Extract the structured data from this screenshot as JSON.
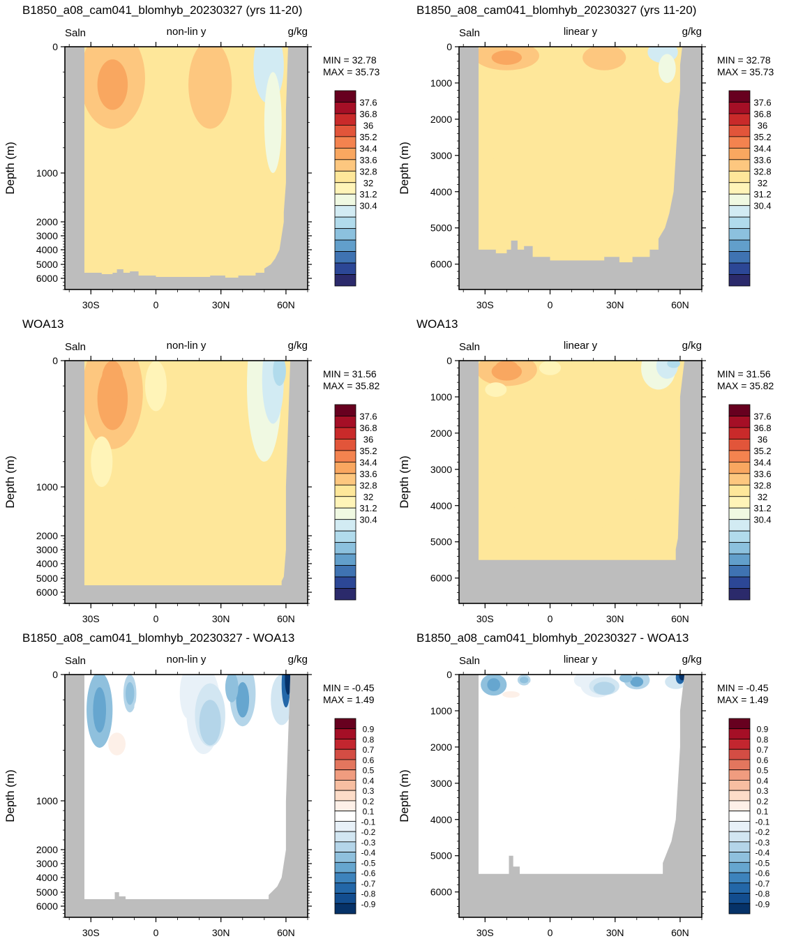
{
  "chart_data": [
    {
      "type": "heatmap",
      "title": "B1850_a08_cam041_blomhyb_20230327 (yrs 11-20)",
      "left_label": "Saln",
      "center_label": "non-lin y",
      "right_label": "g/kg",
      "ylabel": "Depth (m)",
      "yscale": "non-linear",
      "yticks": [
        "0",
        "1000",
        "2000",
        "3000",
        "4000",
        "5000",
        "6000"
      ],
      "xticks": [
        "30S",
        "0",
        "30N",
        "60N"
      ],
      "min_text": "MIN =  32.78",
      "max_text": "MAX =  35.73",
      "colorbar": [
        "37.6",
        "36.8",
        "36",
        "35.2",
        "34.4",
        "33.6",
        "32.8",
        "32",
        "31.2",
        "30.4"
      ],
      "palette": "saln"
    },
    {
      "type": "heatmap",
      "title": "B1850_a08_cam041_blomhyb_20230327 (yrs 11-20)",
      "left_label": "Saln",
      "center_label": "linear y",
      "right_label": "g/kg",
      "ylabel": "Depth (m)",
      "yscale": "linear",
      "yticks": [
        "0",
        "1000",
        "2000",
        "3000",
        "4000",
        "5000",
        "6000"
      ],
      "xticks": [
        "30S",
        "0",
        "30N",
        "60N"
      ],
      "min_text": "MIN =  32.78",
      "max_text": "MAX =  35.73",
      "colorbar": [
        "37.6",
        "36.8",
        "36",
        "35.2",
        "34.4",
        "33.6",
        "32.8",
        "32",
        "31.2",
        "30.4"
      ],
      "palette": "saln"
    },
    {
      "type": "heatmap",
      "title": "WOA13",
      "left_label": "Saln",
      "center_label": "non-lin y",
      "right_label": "g/kg",
      "ylabel": "Depth (m)",
      "yscale": "non-linear",
      "yticks": [
        "0",
        "1000",
        "2000",
        "3000",
        "4000",
        "5000",
        "6000"
      ],
      "xticks": [
        "30S",
        "0",
        "30N",
        "60N"
      ],
      "min_text": "MIN =  31.56",
      "max_text": "MAX =  35.82",
      "colorbar": [
        "37.6",
        "36.8",
        "36",
        "35.2",
        "34.4",
        "33.6",
        "32.8",
        "32",
        "31.2",
        "30.4"
      ],
      "palette": "saln"
    },
    {
      "type": "heatmap",
      "title": "WOA13",
      "left_label": "Saln",
      "center_label": "linear y",
      "right_label": "g/kg",
      "ylabel": "Depth (m)",
      "yscale": "linear",
      "yticks": [
        "0",
        "1000",
        "2000",
        "3000",
        "4000",
        "5000",
        "6000"
      ],
      "xticks": [
        "30S",
        "0",
        "30N",
        "60N"
      ],
      "min_text": "MIN =  31.56",
      "max_text": "MAX =  35.82",
      "colorbar": [
        "37.6",
        "36.8",
        "36",
        "35.2",
        "34.4",
        "33.6",
        "32.8",
        "32",
        "31.2",
        "30.4"
      ],
      "palette": "saln"
    },
    {
      "type": "heatmap",
      "title": "B1850_a08_cam041_blomhyb_20230327 - WOA13",
      "left_label": "Saln",
      "center_label": "non-lin y",
      "right_label": "g/kg",
      "ylabel": "Depth (m)",
      "yscale": "non-linear",
      "yticks": [
        "0",
        "1000",
        "2000",
        "3000",
        "4000",
        "5000",
        "6000"
      ],
      "xticks": [
        "30S",
        "0",
        "30N",
        "60N"
      ],
      "min_text": "MIN =  -0.45",
      "max_text": "MAX =   1.49",
      "colorbar": [
        "0.9",
        "0.8",
        "0.7",
        "0.6",
        "0.5",
        "0.4",
        "0.3",
        "0.2",
        "0.1",
        "-0.1",
        "-0.2",
        "-0.3",
        "-0.4",
        "-0.5",
        "-0.6",
        "-0.7",
        "-0.8",
        "-0.9"
      ],
      "palette": "diff"
    },
    {
      "type": "heatmap",
      "title": "B1850_a08_cam041_blomhyb_20230327 - WOA13",
      "left_label": "Saln",
      "center_label": "linear y",
      "right_label": "g/kg",
      "ylabel": "Depth (m)",
      "yscale": "linear",
      "yticks": [
        "0",
        "1000",
        "2000",
        "3000",
        "4000",
        "5000",
        "6000"
      ],
      "xticks": [
        "30S",
        "0",
        "30N",
        "60N"
      ],
      "min_text": "MIN =  -0.45",
      "max_text": "MAX =   1.49",
      "colorbar": [
        "0.9",
        "0.8",
        "0.7",
        "0.6",
        "0.5",
        "0.4",
        "0.3",
        "0.2",
        "0.1",
        "-0.1",
        "-0.2",
        "-0.3",
        "-0.4",
        "-0.5",
        "-0.6",
        "-0.7",
        "-0.8",
        "-0.9"
      ],
      "palette": "diff"
    }
  ],
  "colors": {
    "land": "#bdbdbd",
    "saln_palette": [
      "#67001f",
      "#a50f26",
      "#c92a2a",
      "#e2553a",
      "#f4834f",
      "#f9a760",
      "#fdc77f",
      "#fee79a",
      "#fff4b8",
      "#f0f9e2",
      "#d2ebf3",
      "#b1dbec",
      "#8cc1de",
      "#629fcb",
      "#3f73b2",
      "#2c4796",
      "#2b2a6b"
    ],
    "diff_palette": [
      "#67001f",
      "#a50f26",
      "#c3262f",
      "#d44d44",
      "#e3765e",
      "#f09c7f",
      "#f7bea1",
      "#fcdcc8",
      "#fdf0e8",
      "#ffffff",
      "#e8f1f8",
      "#d2e6f2",
      "#b4d5e9",
      "#8fc0dd",
      "#66a6cf",
      "#3d83bc",
      "#2367a8",
      "#124d8f",
      "#063268"
    ]
  }
}
